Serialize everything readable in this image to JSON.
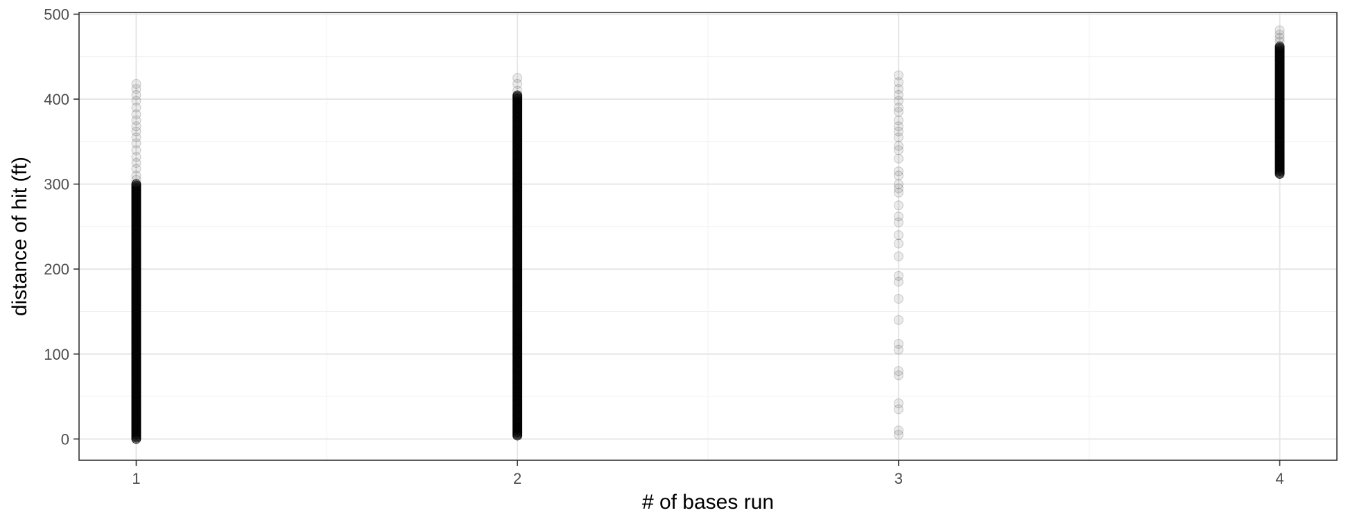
{
  "chart_data": {
    "type": "scatter",
    "title": "",
    "xlabel": "# of bases run",
    "ylabel": "distance of hit (ft)",
    "xlim": [
      0.85,
      4.15
    ],
    "ylim": [
      -25,
      502
    ],
    "x_ticks": [
      1,
      2,
      3,
      4
    ],
    "x_tick_labels": [
      "1",
      "2",
      "3",
      "4"
    ],
    "y_ticks": [
      0,
      100,
      200,
      300,
      400,
      500
    ],
    "y_tick_labels": [
      "0",
      "100",
      "200",
      "300",
      "400",
      "500"
    ],
    "grid": true,
    "legend": "none",
    "point_color": "#000000",
    "groups": [
      {
        "x": 1,
        "y_min": 0,
        "y_dense_max": 300,
        "y_max": 418,
        "sparse_y": [
          305,
          310,
          318,
          325,
          332,
          340,
          348,
          355,
          362,
          368,
          375,
          382,
          390,
          398,
          405,
          412,
          418
        ]
      },
      {
        "x": 2,
        "y_min": 4,
        "y_dense_max": 405,
        "y_max": 425,
        "sparse_y": [
          4,
          8,
          14,
          20,
          28,
          35,
          45,
          55,
          62,
          70,
          80,
          92,
          105,
          118,
          125,
          410,
          418,
          425
        ]
      },
      {
        "x": 3,
        "y_min": 5,
        "y_dense_max": 0,
        "y_max": 428,
        "sparse_y": [
          5,
          10,
          35,
          42,
          75,
          80,
          105,
          112,
          140,
          165,
          185,
          192,
          215,
          230,
          240,
          255,
          262,
          275,
          290,
          295,
          300,
          310,
          315,
          330,
          340,
          345,
          355,
          362,
          368,
          375,
          385,
          390,
          398,
          405,
          412,
          420,
          428
        ]
      },
      {
        "x": 4,
        "y_min": 312,
        "y_dense_max": 462,
        "y_max": 481,
        "sparse_y": [
          312,
          318,
          325,
          335,
          342,
          468,
          472,
          476,
          481
        ]
      }
    ]
  }
}
